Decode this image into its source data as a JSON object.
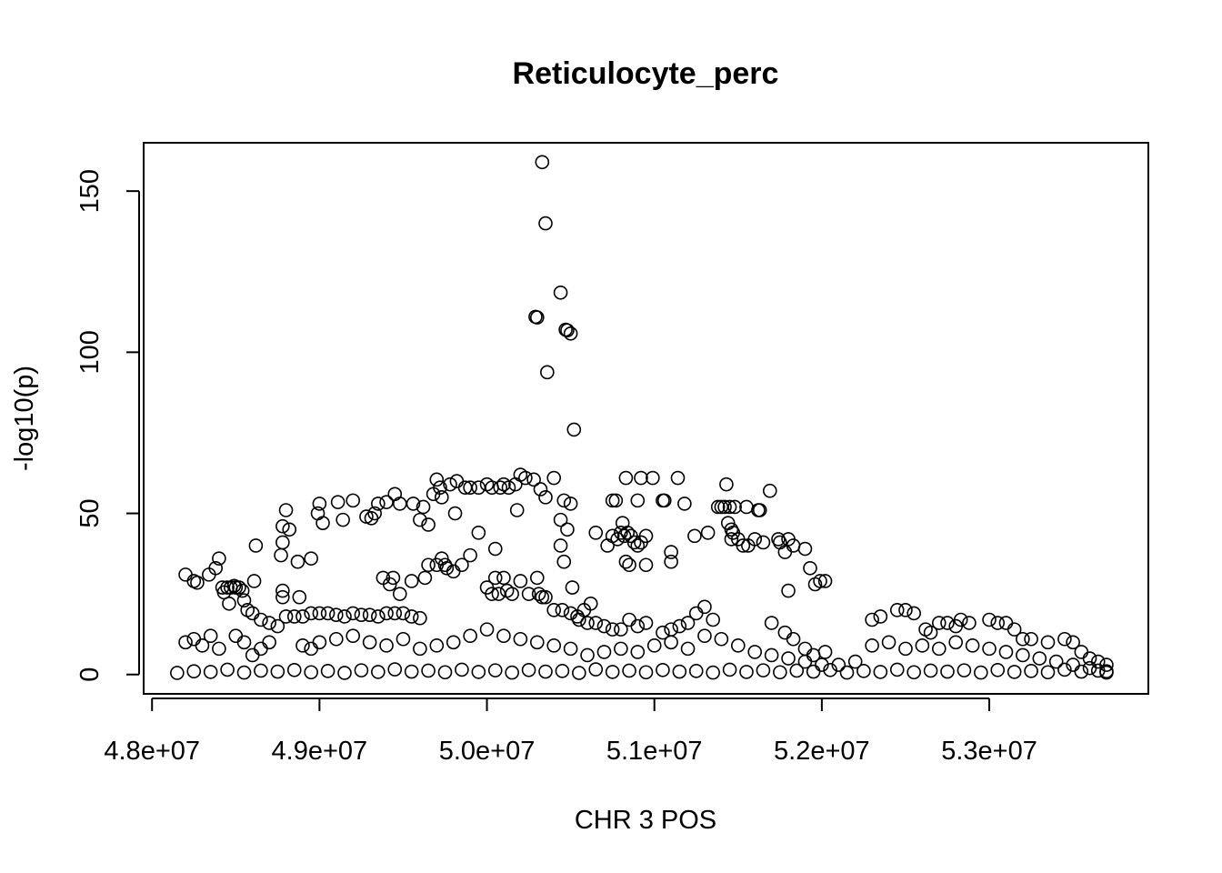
{
  "chart_data": {
    "type": "scatter",
    "title": "Reticulocyte_perc",
    "xlabel": "CHR 3 POS",
    "ylabel": "-log10(p)",
    "xlim": [
      47950000,
      53950000
    ],
    "ylim": [
      -6,
      165
    ],
    "x_ticks": [
      48000000,
      49000000,
      50000000,
      51000000,
      52000000,
      53000000
    ],
    "x_tick_labels": [
      "4.8e+07",
      "4.9e+07",
      "5.0e+07",
      "5.1e+07",
      "5.2e+07",
      "5.3e+07"
    ],
    "y_ticks": [
      0,
      50,
      100,
      150
    ],
    "y_tick_labels": [
      "0",
      "50",
      "100",
      "150"
    ],
    "marker": "open-circle",
    "color": "#000000",
    "grid": false,
    "legend": "none",
    "points": [
      [
        50330000,
        159
      ],
      [
        50350000,
        140
      ],
      [
        50440000,
        118.5
      ],
      [
        50290000,
        111
      ],
      [
        50300000,
        110.8
      ],
      [
        50470000,
        107
      ],
      [
        50480000,
        106.8
      ],
      [
        50500000,
        105.8
      ],
      [
        50360000,
        93.8
      ],
      [
        50520000,
        76
      ],
      [
        50200000,
        62
      ],
      [
        50230000,
        61
      ],
      [
        49700000,
        60.5
      ],
      [
        50170000,
        59
      ],
      [
        50280000,
        60.5
      ],
      [
        50320000,
        57.5
      ],
      [
        50350000,
        55
      ],
      [
        50460000,
        54
      ],
      [
        50500000,
        53
      ],
      [
        50180000,
        51
      ],
      [
        50030000,
        58
      ],
      [
        50080000,
        58
      ],
      [
        50130000,
        58
      ],
      [
        49950000,
        58
      ],
      [
        49900000,
        58
      ],
      [
        50000000,
        59
      ],
      [
        50100000,
        59
      ],
      [
        49720000,
        58
      ],
      [
        49730000,
        55
      ],
      [
        49680000,
        56
      ],
      [
        49620000,
        52
      ],
      [
        49560000,
        53
      ],
      [
        49480000,
        53
      ],
      [
        49400000,
        53.5
      ],
      [
        49350000,
        53
      ],
      [
        49330000,
        50
      ],
      [
        49310000,
        48.5
      ],
      [
        49280000,
        49
      ],
      [
        49450000,
        56
      ],
      [
        49600000,
        48
      ],
      [
        49650000,
        46.5
      ],
      [
        49810000,
        50
      ],
      [
        49780000,
        59
      ],
      [
        49870000,
        58
      ],
      [
        49820000,
        60
      ],
      [
        50400000,
        61
      ],
      [
        50440000,
        48
      ],
      [
        50440000,
        40
      ],
      [
        50480000,
        45
      ],
      [
        50460000,
        35
      ],
      [
        49000000,
        53
      ],
      [
        48990000,
        50
      ],
      [
        49200000,
        54
      ],
      [
        49110000,
        53.5
      ],
      [
        49140000,
        48
      ],
      [
        49020000,
        47
      ],
      [
        48800000,
        51
      ],
      [
        48780000,
        46
      ],
      [
        48820000,
        45
      ],
      [
        48780000,
        41
      ],
      [
        48770000,
        37
      ],
      [
        48870000,
        35
      ],
      [
        48950000,
        36
      ],
      [
        48620000,
        40
      ],
      [
        48400000,
        36
      ],
      [
        48200000,
        31
      ],
      [
        48250000,
        29
      ],
      [
        48340000,
        31
      ],
      [
        48380000,
        33
      ],
      [
        48270000,
        28.5
      ],
      [
        48420000,
        27
      ],
      [
        48450000,
        27
      ],
      [
        48470000,
        27
      ],
      [
        48500000,
        27
      ],
      [
        48520000,
        27
      ],
      [
        48540000,
        26
      ],
      [
        48430000,
        25.5
      ],
      [
        48490000,
        27.5
      ],
      [
        48610000,
        29
      ],
      [
        48460000,
        22
      ],
      [
        48550000,
        23
      ],
      [
        48570000,
        20
      ],
      [
        48600000,
        19
      ],
      [
        48650000,
        17
      ],
      [
        48700000,
        16
      ],
      [
        48750000,
        15
      ],
      [
        48800000,
        18
      ],
      [
        48850000,
        18
      ],
      [
        48900000,
        18
      ],
      [
        48950000,
        19
      ],
      [
        49000000,
        19
      ],
      [
        49050000,
        19
      ],
      [
        49100000,
        18.5
      ],
      [
        49150000,
        18
      ],
      [
        49200000,
        19
      ],
      [
        49250000,
        18.5
      ],
      [
        49300000,
        18.5
      ],
      [
        49350000,
        18
      ],
      [
        49400000,
        19
      ],
      [
        49450000,
        19
      ],
      [
        49500000,
        19
      ],
      [
        49550000,
        18
      ],
      [
        49600000,
        17.5
      ],
      [
        48780000,
        26
      ],
      [
        48780000,
        24
      ],
      [
        48880000,
        24
      ],
      [
        49380000,
        30
      ],
      [
        49440000,
        30
      ],
      [
        49420000,
        28
      ],
      [
        49480000,
        25
      ],
      [
        49550000,
        29
      ],
      [
        49630000,
        30
      ],
      [
        49650000,
        34
      ],
      [
        49700000,
        34
      ],
      [
        49750000,
        34
      ],
      [
        49730000,
        36
      ],
      [
        49760000,
        33
      ],
      [
        49800000,
        32
      ],
      [
        49850000,
        34
      ],
      [
        49900000,
        37
      ],
      [
        49950000,
        44
      ],
      [
        50050000,
        39
      ],
      [
        50100000,
        30
      ],
      [
        50050000,
        30
      ],
      [
        50000000,
        27
      ],
      [
        50030000,
        25
      ],
      [
        50070000,
        25
      ],
      [
        50120000,
        26
      ],
      [
        50150000,
        25
      ],
      [
        50200000,
        29
      ],
      [
        50250000,
        25
      ],
      [
        50300000,
        30
      ],
      [
        50310000,
        25
      ],
      [
        50330000,
        24
      ],
      [
        50350000,
        24
      ],
      [
        50400000,
        20
      ],
      [
        50450000,
        20
      ],
      [
        50500000,
        19
      ],
      [
        50550000,
        17
      ],
      [
        50600000,
        16
      ],
      [
        50650000,
        16
      ],
      [
        50700000,
        15
      ],
      [
        50750000,
        14
      ],
      [
        50800000,
        14
      ],
      [
        50850000,
        17
      ],
      [
        50900000,
        15
      ],
      [
        50950000,
        16
      ],
      [
        50510000,
        27
      ],
      [
        50540000,
        18
      ],
      [
        50580000,
        20
      ],
      [
        50620000,
        22
      ],
      [
        50650000,
        44
      ],
      [
        50720000,
        40
      ],
      [
        50750000,
        43
      ],
      [
        50780000,
        42
      ],
      [
        50800000,
        44
      ],
      [
        50820000,
        43
      ],
      [
        50840000,
        44
      ],
      [
        50860000,
        43
      ],
      [
        50880000,
        41
      ],
      [
        50900000,
        40
      ],
      [
        50920000,
        41
      ],
      [
        50950000,
        43
      ],
      [
        50830000,
        61
      ],
      [
        50920000,
        61
      ],
      [
        50990000,
        61
      ],
      [
        51140000,
        61
      ],
      [
        51050000,
        54
      ],
      [
        51060000,
        54
      ],
      [
        50750000,
        54
      ],
      [
        50770000,
        54
      ],
      [
        50900000,
        54
      ],
      [
        50810000,
        47
      ],
      [
        50830000,
        35
      ],
      [
        50850000,
        34
      ],
      [
        50950000,
        34
      ],
      [
        51100000,
        38
      ],
      [
        51100000,
        35
      ],
      [
        51180000,
        53
      ],
      [
        51240000,
        43
      ],
      [
        51320000,
        44
      ],
      [
        51380000,
        52
      ],
      [
        51400000,
        52
      ],
      [
        51420000,
        52
      ],
      [
        51450000,
        52
      ],
      [
        51480000,
        52
      ],
      [
        51550000,
        52
      ],
      [
        51620000,
        51
      ],
      [
        51630000,
        51
      ],
      [
        51430000,
        59
      ],
      [
        51690000,
        57
      ],
      [
        51440000,
        47
      ],
      [
        51460000,
        45
      ],
      [
        51470000,
        44
      ],
      [
        51460000,
        42
      ],
      [
        51500000,
        42
      ],
      [
        51530000,
        40
      ],
      [
        51560000,
        40
      ],
      [
        51600000,
        42
      ],
      [
        51650000,
        41
      ],
      [
        51740000,
        42
      ],
      [
        51750000,
        41
      ],
      [
        51780000,
        38
      ],
      [
        51800000,
        42
      ],
      [
        51830000,
        40
      ],
      [
        51900000,
        39
      ],
      [
        51930000,
        33
      ],
      [
        51960000,
        28
      ],
      [
        51990000,
        29
      ],
      [
        52020000,
        29
      ],
      [
        51800000,
        26
      ],
      [
        51700000,
        16
      ],
      [
        51780000,
        13
      ],
      [
        51830000,
        11
      ],
      [
        51900000,
        8
      ],
      [
        51950000,
        6
      ],
      [
        52020000,
        7
      ],
      [
        51200000,
        16
      ],
      [
        51250000,
        19
      ],
      [
        51300000,
        21
      ],
      [
        51350000,
        17
      ],
      [
        51150000,
        15
      ],
      [
        51100000,
        14
      ],
      [
        51050000,
        13
      ],
      [
        52300000,
        17
      ],
      [
        52350000,
        18
      ],
      [
        52450000,
        20
      ],
      [
        52500000,
        20
      ],
      [
        52550000,
        19
      ],
      [
        52620000,
        14
      ],
      [
        52650000,
        13
      ],
      [
        52700000,
        16
      ],
      [
        52750000,
        16
      ],
      [
        52800000,
        15
      ],
      [
        52830000,
        17
      ],
      [
        52880000,
        16
      ],
      [
        53000000,
        17
      ],
      [
        53050000,
        16
      ],
      [
        53100000,
        16
      ],
      [
        53150000,
        14
      ],
      [
        53200000,
        11
      ],
      [
        53250000,
        11
      ],
      [
        53350000,
        10
      ],
      [
        53450000,
        11
      ],
      [
        53500000,
        10
      ],
      [
        53550000,
        7
      ],
      [
        53600000,
        5
      ],
      [
        53650000,
        4
      ],
      [
        53700000,
        3
      ],
      [
        48200000,
        10
      ],
      [
        48250000,
        11
      ],
      [
        48300000,
        9
      ],
      [
        48350000,
        12
      ],
      [
        48400000,
        8
      ],
      [
        48500000,
        12
      ],
      [
        48550000,
        10
      ],
      [
        48600000,
        6
      ],
      [
        48650000,
        8
      ],
      [
        48700000,
        10
      ],
      [
        48900000,
        9
      ],
      [
        48950000,
        8
      ],
      [
        49000000,
        10
      ],
      [
        49100000,
        11
      ],
      [
        49200000,
        12
      ],
      [
        49300000,
        10
      ],
      [
        49400000,
        9
      ],
      [
        49500000,
        11
      ],
      [
        49600000,
        8
      ],
      [
        49700000,
        9
      ],
      [
        49800000,
        10
      ],
      [
        49900000,
        12
      ],
      [
        50000000,
        14
      ],
      [
        50100000,
        12
      ],
      [
        50200000,
        11
      ],
      [
        50300000,
        10
      ],
      [
        50400000,
        9
      ],
      [
        50500000,
        8
      ],
      [
        50600000,
        6
      ],
      [
        50700000,
        7
      ],
      [
        50800000,
        8
      ],
      [
        50900000,
        7
      ],
      [
        51000000,
        9
      ],
      [
        51100000,
        10
      ],
      [
        51200000,
        8
      ],
      [
        51300000,
        12
      ],
      [
        51400000,
        11
      ],
      [
        51500000,
        9
      ],
      [
        51600000,
        7
      ],
      [
        51700000,
        6
      ],
      [
        51800000,
        5
      ],
      [
        51900000,
        4
      ],
      [
        52000000,
        3
      ],
      [
        52100000,
        3
      ],
      [
        52200000,
        4
      ],
      [
        52300000,
        9
      ],
      [
        52400000,
        10
      ],
      [
        52500000,
        8
      ],
      [
        52600000,
        9
      ],
      [
        52700000,
        8
      ],
      [
        52800000,
        10
      ],
      [
        52900000,
        9
      ],
      [
        53000000,
        8
      ],
      [
        53100000,
        7
      ],
      [
        53200000,
        6
      ],
      [
        53300000,
        5
      ],
      [
        53400000,
        4
      ],
      [
        53500000,
        3
      ],
      [
        53600000,
        2
      ],
      [
        53700000,
        1
      ],
      [
        48150000,
        0.5
      ],
      [
        48250000,
        1
      ],
      [
        48350000,
        0.8
      ],
      [
        48450000,
        1.5
      ],
      [
        48550000,
        0.6
      ],
      [
        48650000,
        1.2
      ],
      [
        48750000,
        0.9
      ],
      [
        48850000,
        1.4
      ],
      [
        48950000,
        0.7
      ],
      [
        49050000,
        1.1
      ],
      [
        49150000,
        0.5
      ],
      [
        49250000,
        1.3
      ],
      [
        49350000,
        0.8
      ],
      [
        49450000,
        1.6
      ],
      [
        49550000,
        0.9
      ],
      [
        49650000,
        1.2
      ],
      [
        49750000,
        0.7
      ],
      [
        49850000,
        1.5
      ],
      [
        49950000,
        0.8
      ],
      [
        50050000,
        1.3
      ],
      [
        50150000,
        0.6
      ],
      [
        50250000,
        1.4
      ],
      [
        50350000,
        0.9
      ],
      [
        50450000,
        1.1
      ],
      [
        50550000,
        0.5
      ],
      [
        50650000,
        1.6
      ],
      [
        50750000,
        0.8
      ],
      [
        50850000,
        1.2
      ],
      [
        50950000,
        0.7
      ],
      [
        51050000,
        1.4
      ],
      [
        51150000,
        0.9
      ],
      [
        51250000,
        1.1
      ],
      [
        51350000,
        0.6
      ],
      [
        51450000,
        1.5
      ],
      [
        51550000,
        0.8
      ],
      [
        51650000,
        1.3
      ],
      [
        51750000,
        0.7
      ],
      [
        51850000,
        1.2
      ],
      [
        51950000,
        0.9
      ],
      [
        52050000,
        1.4
      ],
      [
        52150000,
        0.6
      ],
      [
        52250000,
        1.1
      ],
      [
        52350000,
        0.8
      ],
      [
        52450000,
        1.5
      ],
      [
        52550000,
        0.7
      ],
      [
        52650000,
        1.2
      ],
      [
        52750000,
        0.9
      ],
      [
        52850000,
        1.3
      ],
      [
        52950000,
        0.6
      ],
      [
        53050000,
        1.4
      ],
      [
        53150000,
        0.8
      ],
      [
        53250000,
        1.1
      ],
      [
        53350000,
        0.7
      ],
      [
        53450000,
        1.5
      ],
      [
        53550000,
        0.9
      ],
      [
        53650000,
        1.2
      ],
      [
        53700000,
        0.6
      ]
    ]
  }
}
